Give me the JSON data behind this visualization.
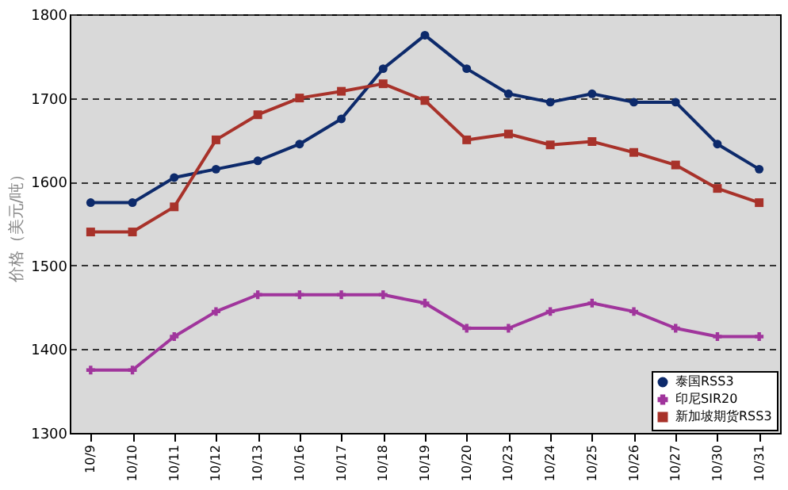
{
  "chart_data": {
    "type": "line",
    "ylabel": "价格（美元/吨）",
    "categories": [
      "10/9",
      "10/10",
      "10/11",
      "10/12",
      "10/13",
      "10/16",
      "10/17",
      "10/18",
      "10/19",
      "10/20",
      "10/23",
      "10/24",
      "10/25",
      "10/26",
      "10/27",
      "10/30",
      "10/31"
    ],
    "series": [
      {
        "name": "泰国RSS3",
        "color": "#0d2a6b",
        "marker": "circle",
        "values": [
          1575,
          1575,
          1605,
          1615,
          1625,
          1645,
          1675,
          1735,
          1775,
          1735,
          1705,
          1695,
          1705,
          1695,
          1695,
          1645,
          1615
        ]
      },
      {
        "name": "印尼SIR20",
        "color": "#a0359c",
        "marker": "cross",
        "values": [
          1375,
          1375,
          1415,
          1445,
          1465,
          1465,
          1465,
          1465,
          1455,
          1425,
          1425,
          1445,
          1455,
          1445,
          1425,
          1415,
          1415
        ]
      },
      {
        "name": "新加坡期货RSS3",
        "color": "#a8322a",
        "marker": "square",
        "values": [
          1540,
          1540,
          1570,
          1650,
          1680,
          1700,
          1708,
          1717,
          1697,
          1650,
          1657,
          1644,
          1648,
          1635,
          1620,
          1592,
          1575
        ]
      }
    ],
    "ylim": [
      1300,
      1800
    ],
    "yticks": [
      1300,
      1400,
      1500,
      1600,
      1700,
      1800
    ],
    "grid": "y",
    "legend": "bottom right"
  }
}
